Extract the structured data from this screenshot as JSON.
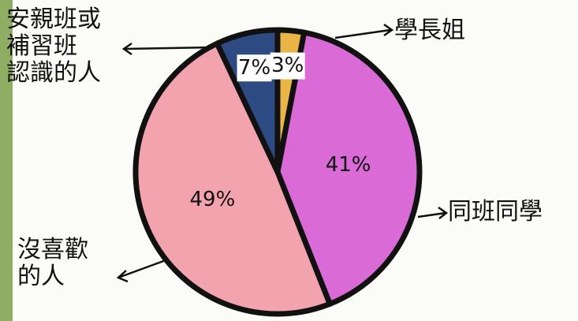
{
  "chart_data": {
    "type": "pie",
    "categories": [
      "學長姐",
      "同班同學",
      "沒喜歡\n的人",
      "安親班或\n補習班\n認識的人"
    ],
    "values": [
      3,
      41,
      49,
      7
    ],
    "value_labels": [
      "3%",
      "41%",
      "49%",
      "7%"
    ],
    "colors": [
      "#e9b547",
      "#d96ad6",
      "#f2a3ad",
      "#2d4b82"
    ]
  }
}
